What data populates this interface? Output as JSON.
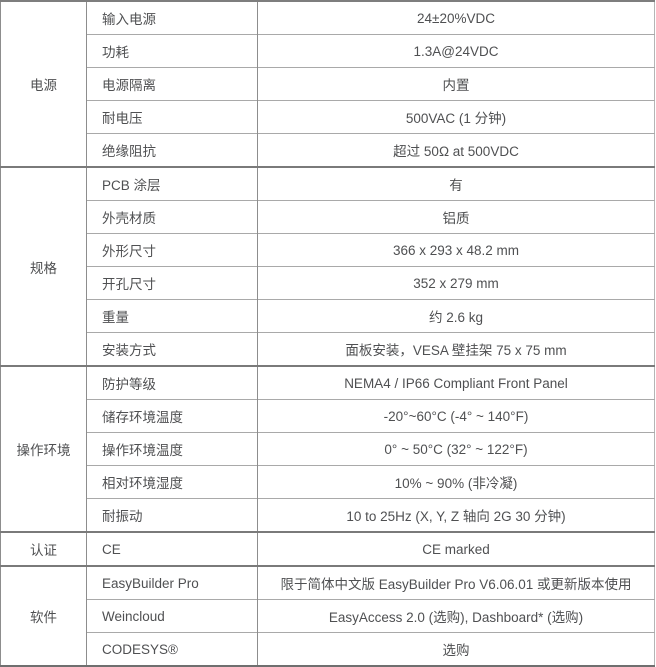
{
  "table": {
    "sections": [
      {
        "category": "电源",
        "rows": [
          {
            "label": "输入电源",
            "value": "24±20%VDC"
          },
          {
            "label": "功耗",
            "value": "1.3A@24VDC"
          },
          {
            "label": "电源隔离",
            "value": "内置"
          },
          {
            "label": "耐电压",
            "value": "500VAC (1 分钟)"
          },
          {
            "label": "绝缘阻抗",
            "value": "超过 50Ω at 500VDC"
          }
        ]
      },
      {
        "category": "规格",
        "rows": [
          {
            "label": "PCB 涂层",
            "value": "有"
          },
          {
            "label": "外壳材质",
            "value": "铝质"
          },
          {
            "label": "外形尺寸",
            "value": "366 x 293 x 48.2 mm"
          },
          {
            "label": "开孔尺寸",
            "value": "352 x 279 mm"
          },
          {
            "label": "重量",
            "value": "约 2.6 kg"
          },
          {
            "label": "安装方式",
            "value": "面板安装，VESA 壁挂架 75 x 75 mm"
          }
        ]
      },
      {
        "category": "操作环境",
        "rows": [
          {
            "label": "防护等级",
            "value": "NEMA4 / IP66 Compliant Front Panel"
          },
          {
            "label": "储存环境温度",
            "value": "-20°~60°C (-4° ~ 140°F)"
          },
          {
            "label": "操作环境温度",
            "value": "0° ~ 50°C (32° ~ 122°F)"
          },
          {
            "label": "相对环境湿度",
            "value": "10% ~ 90% (非冷凝)"
          },
          {
            "label": "耐振动",
            "value": "10 to 25Hz (X, Y, Z 轴向 2G 30 分钟)"
          }
        ]
      },
      {
        "category": "认证",
        "rows": [
          {
            "label": "CE",
            "value": "CE marked"
          }
        ]
      },
      {
        "category": "软件",
        "rows": [
          {
            "label": "EasyBuilder Pro",
            "value": "限于简体中文版 EasyBuilder Pro V6.06.01 或更新版本使用"
          },
          {
            "label": "Weincloud",
            "value": "EasyAccess 2.0 (选购), Dashboard* (选购)"
          },
          {
            "label": "CODESYS®",
            "value": "选购"
          }
        ]
      }
    ]
  },
  "colors": {
    "text": "#4f5052",
    "inner_line": "#a9a9a9",
    "section_line": "#7a7a7a",
    "background": "#ffffff"
  }
}
